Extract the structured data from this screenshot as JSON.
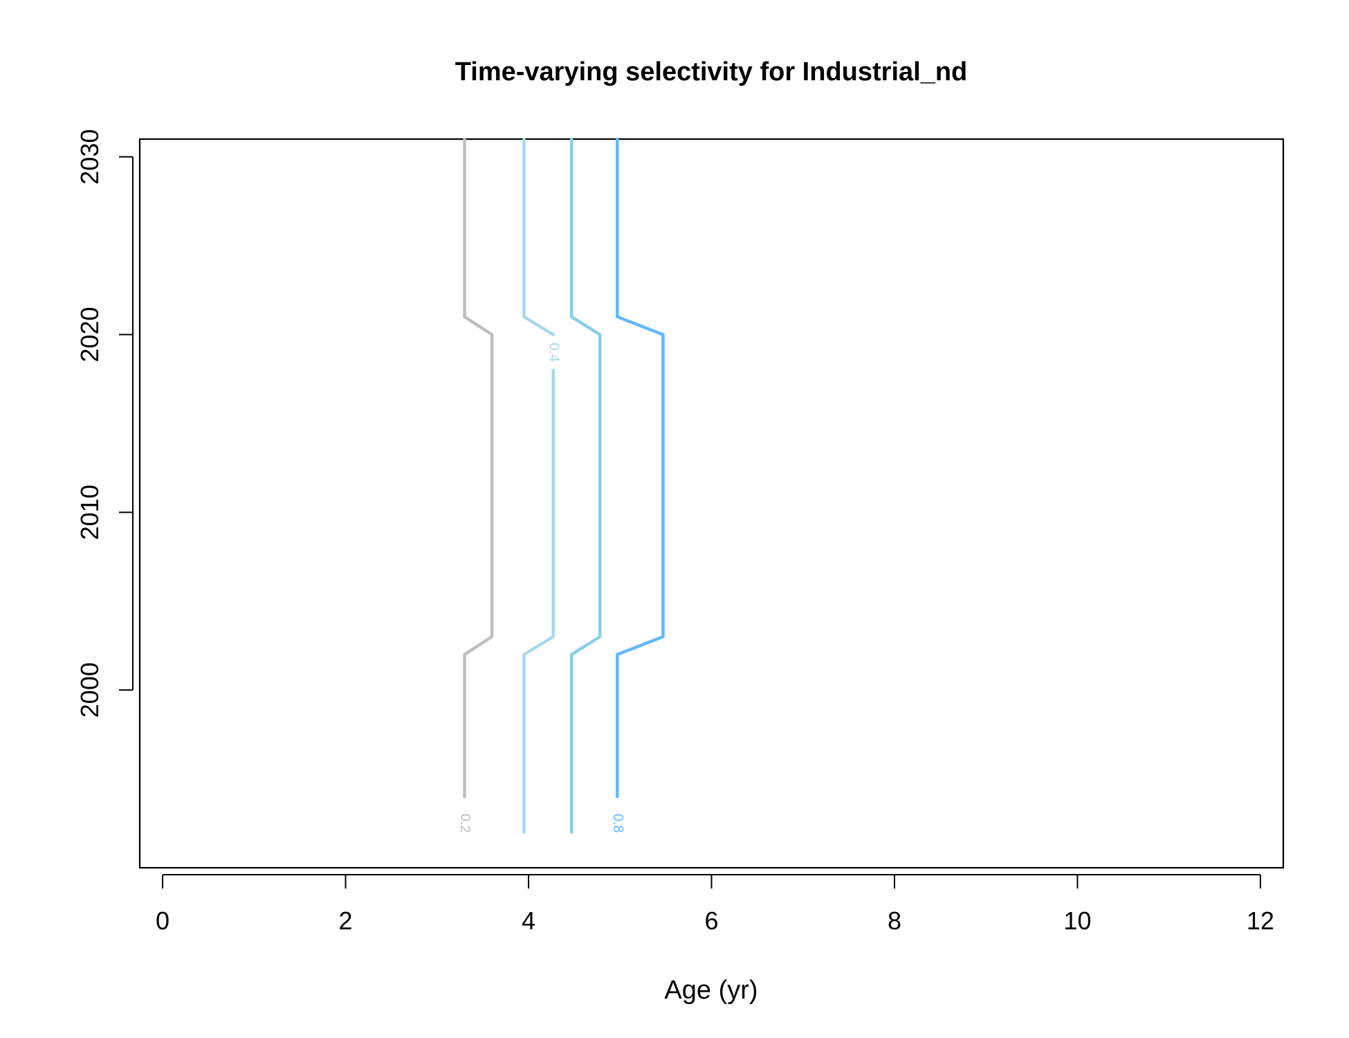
{
  "chart_data": {
    "type": "contour",
    "title": "Time-varying selectivity for Industrial_nd",
    "xlabel": "Age (yr)",
    "ylabel": "",
    "xlim": [
      -0.25,
      12.25
    ],
    "ylim": [
      1990,
      2031
    ],
    "x_ticks": [
      "0",
      "2",
      "4",
      "6",
      "8",
      "10",
      "12"
    ],
    "y_ticks": [
      "2000",
      "2010",
      "2020",
      "2030"
    ],
    "grid": false,
    "legend": "none",
    "contours": [
      {
        "level": "0.2",
        "label": "0.2",
        "color": "#bebebe",
        "label_point": [
          3.3,
          1992.5
        ],
        "segments": [
          [
            [
              3.3,
              1994
            ],
            [
              3.3,
              2002
            ],
            [
              3.6,
              2003
            ],
            [
              3.6,
              2020
            ],
            [
              3.3,
              2021
            ],
            [
              3.3,
              2031
            ]
          ]
        ]
      },
      {
        "level": "0.4",
        "label": "0.4",
        "color": "#a8d8ea",
        "label_point": [
          4.27,
          2019
        ],
        "segments": [
          [
            [
              3.95,
              1992
            ],
            [
              3.95,
              2002
            ],
            [
              4.27,
              2003
            ],
            [
              4.27,
              2018
            ]
          ],
          [
            [
              4.27,
              2020
            ],
            [
              3.95,
              2021
            ],
            [
              3.95,
              2031
            ]
          ]
        ]
      },
      {
        "level": "0.6",
        "label": "",
        "color": "#87ceeb",
        "label_point": null,
        "segments": [
          [
            [
              4.47,
              1992
            ],
            [
              4.47,
              2002
            ],
            [
              4.78,
              2003
            ],
            [
              4.78,
              2020
            ],
            [
              4.47,
              2021
            ],
            [
              4.47,
              2031
            ]
          ]
        ]
      },
      {
        "level": "0.8",
        "label": "0.8",
        "color": "#63b8ff",
        "label_point": [
          4.97,
          1992.5
        ],
        "segments": [
          [
            [
              4.97,
              1994
            ],
            [
              4.97,
              2002
            ],
            [
              5.47,
              2003
            ],
            [
              5.47,
              2020
            ],
            [
              4.97,
              2021
            ],
            [
              4.97,
              2031
            ]
          ]
        ]
      }
    ]
  }
}
